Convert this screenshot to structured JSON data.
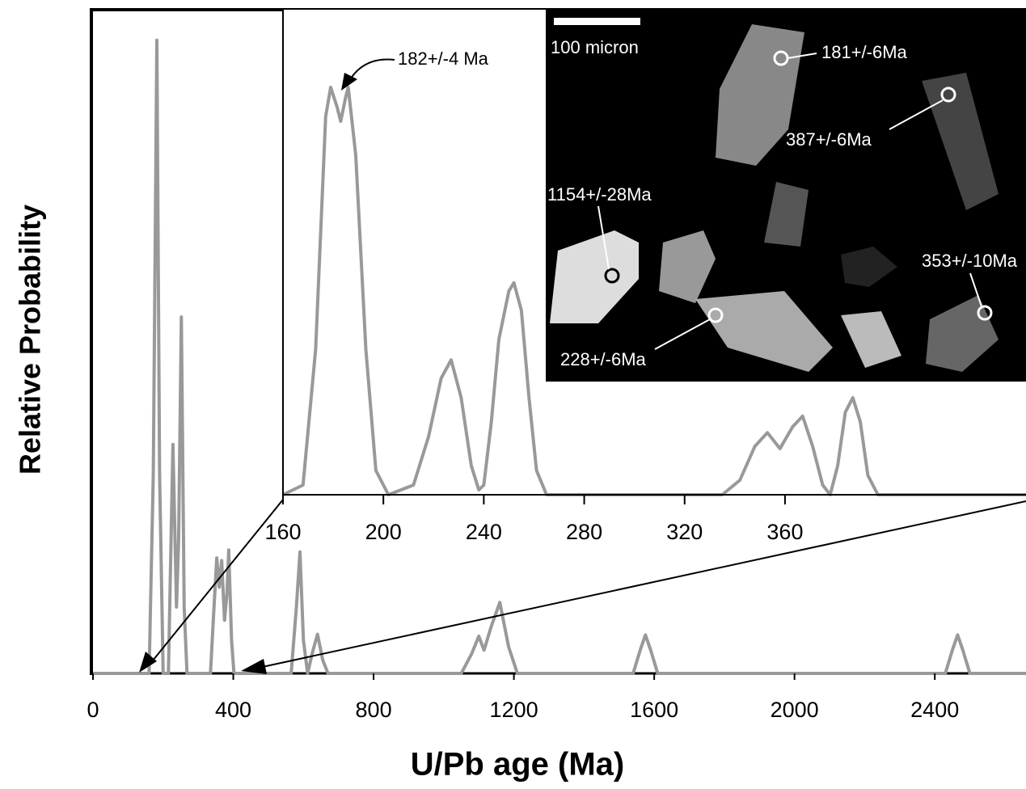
{
  "chart_data": [
    {
      "type": "line",
      "xlabel": "U/Pb age (Ma)",
      "ylabel": "Relative Probability",
      "xlim": [
        0,
        2660
      ],
      "ylim": [
        0,
        1
      ],
      "xticks": [
        0,
        400,
        800,
        1200,
        1600,
        2000,
        2400
      ],
      "series": [
        {
          "color": "#999999",
          "x": [
            0,
            160,
            172,
            182,
            190,
            200,
            215,
            228,
            238,
            244,
            252,
            260,
            268,
            335,
            345,
            353,
            360,
            367,
            375,
            382,
            387,
            395,
            402,
            565,
            580,
            590,
            600,
            612,
            625,
            640,
            655,
            670,
            1050,
            1080,
            1100,
            1115,
            1135,
            1160,
            1185,
            1210,
            1540,
            1560,
            1575,
            1590,
            1610,
            2430,
            2450,
            2465,
            2480,
            2500,
            2660
          ],
          "values": [
            0,
            0,
            0.3,
            0.954,
            0.3,
            0,
            0,
            0.345,
            0.1,
            0.2,
            0.537,
            0.1,
            0,
            0,
            0.1,
            0.174,
            0.13,
            0.17,
            0.08,
            0.12,
            0.186,
            0.05,
            0,
            0,
            0.1,
            0.183,
            0.05,
            0,
            0.03,
            0.059,
            0.02,
            0,
            0,
            0.03,
            0.056,
            0.035,
            0.07,
            0.107,
            0.04,
            0,
            0,
            0.035,
            0.058,
            0.035,
            0,
            0,
            0.035,
            0.058,
            0.035,
            0,
            0
          ]
        }
      ]
    },
    {
      "type": "line",
      "xlim": [
        160,
        456
      ],
      "ylim": [
        0,
        1
      ],
      "xticks": [
        160,
        200,
        240,
        280,
        320,
        360
      ],
      "annotations": [
        "182+/-4 Ma",
        "100 micron",
        "181+/-6Ma",
        "387+/-6Ma",
        "1154+/-28Ma",
        "353+/-10Ma",
        "228+/-6Ma"
      ],
      "series": [
        {
          "color": "#999999",
          "x": [
            160,
            168,
            173,
            177,
            179,
            181.5,
            183,
            185,
            186,
            189,
            193,
            197,
            202,
            212,
            218,
            223,
            227,
            231,
            235,
            238,
            240,
            243,
            246,
            250,
            252,
            255,
            258,
            261,
            265,
            335,
            342,
            348,
            353,
            358,
            363,
            367,
            371,
            375,
            378,
            381,
            384,
            387,
            390,
            393,
            397,
            456
          ],
          "values": [
            0,
            0.02,
            0.3,
            0.78,
            0.84,
            0.8,
            0.77,
            0.82,
            0.84,
            0.7,
            0.3,
            0.05,
            0,
            0.02,
            0.12,
            0.24,
            0.278,
            0.2,
            0.06,
            0.01,
            0.02,
            0.15,
            0.32,
            0.42,
            0.437,
            0.38,
            0.2,
            0.05,
            0,
            0,
            0.03,
            0.1,
            0.128,
            0.095,
            0.14,
            0.162,
            0.1,
            0.02,
            0,
            0.06,
            0.17,
            0.2,
            0.15,
            0.04,
            0,
            0
          ]
        }
      ]
    }
  ]
}
